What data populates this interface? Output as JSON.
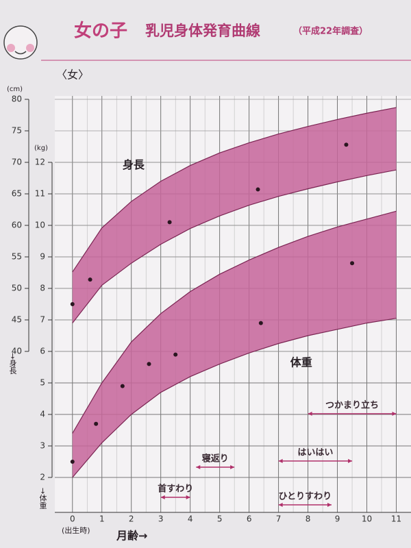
{
  "chart_data": {
    "type": "band",
    "title": "女の子",
    "subtitle": "乳児身体発育曲線",
    "note": "（平成22年調査）",
    "sex_label": "〈女〉",
    "y_unit": "(kg)",
    "y2_unit": "(cm)",
    "y_label": "→体重",
    "y2_label": "→身長",
    "x_label": "月齢→",
    "x_note": "(出生時)",
    "x": [
      0,
      1,
      2,
      3,
      4,
      5,
      6,
      7,
      8,
      9,
      10,
      11
    ],
    "xlim": [
      -0.6,
      11.5
    ],
    "xticks": [
      0,
      1,
      2,
      3,
      4,
      5,
      6,
      7,
      8,
      9,
      10,
      11
    ],
    "ylim": [
      1,
      14
    ],
    "yticks": [
      2,
      3,
      4,
      5,
      6,
      7,
      8,
      9,
      10,
      11,
      12
    ],
    "y2lim": [
      15,
      80
    ],
    "y2ticks": [
      40,
      45,
      50,
      55,
      60,
      65,
      70,
      75,
      80
    ],
    "grid": true,
    "series": [
      {
        "name": "身長",
        "axis": "y2",
        "color": "#c5659a",
        "lower": [
          44.5,
          50.5,
          54,
          57,
          59.5,
          61.5,
          63.2,
          64.6,
          65.8,
          66.9,
          67.9,
          68.8
        ],
        "upper": [
          52.6,
          59.6,
          63.8,
          67,
          69.5,
          71.5,
          73.1,
          74.5,
          75.7,
          76.8,
          77.8,
          78.7
        ],
        "points_x": [
          0,
          0.6,
          3.3,
          6.3,
          9.3
        ],
        "points": [
          47.5,
          51.4,
          60.5,
          65.7,
          72.8
        ]
      },
      {
        "name": "体重",
        "color": "#c5659a",
        "lower": [
          2.0,
          3.1,
          4.0,
          4.7,
          5.2,
          5.6,
          5.95,
          6.25,
          6.5,
          6.7,
          6.9,
          7.05
        ],
        "upper": [
          3.4,
          5.0,
          6.3,
          7.2,
          7.9,
          8.45,
          8.9,
          9.3,
          9.65,
          9.95,
          10.2,
          10.45
        ],
        "points_x": [
          0,
          0.8,
          1.7,
          2.6,
          3.5,
          6.4,
          9.5
        ],
        "points": [
          2.5,
          3.7,
          4.9,
          5.6,
          5.9,
          6.9,
          8.8
        ]
      }
    ],
    "milestones": [
      {
        "name": "つかまり立ち",
        "start": 8,
        "end": 11
      },
      {
        "name": "はいはい",
        "start": 7,
        "end": 9.5
      },
      {
        "name": "寝返り",
        "start": 4.2,
        "end": 5.5
      },
      {
        "name": "首すわり",
        "start": 3,
        "end": 4
      },
      {
        "name": "ひとりすわり",
        "start": 7,
        "end": 8.8
      }
    ],
    "milestone_color": "#b0306a"
  }
}
